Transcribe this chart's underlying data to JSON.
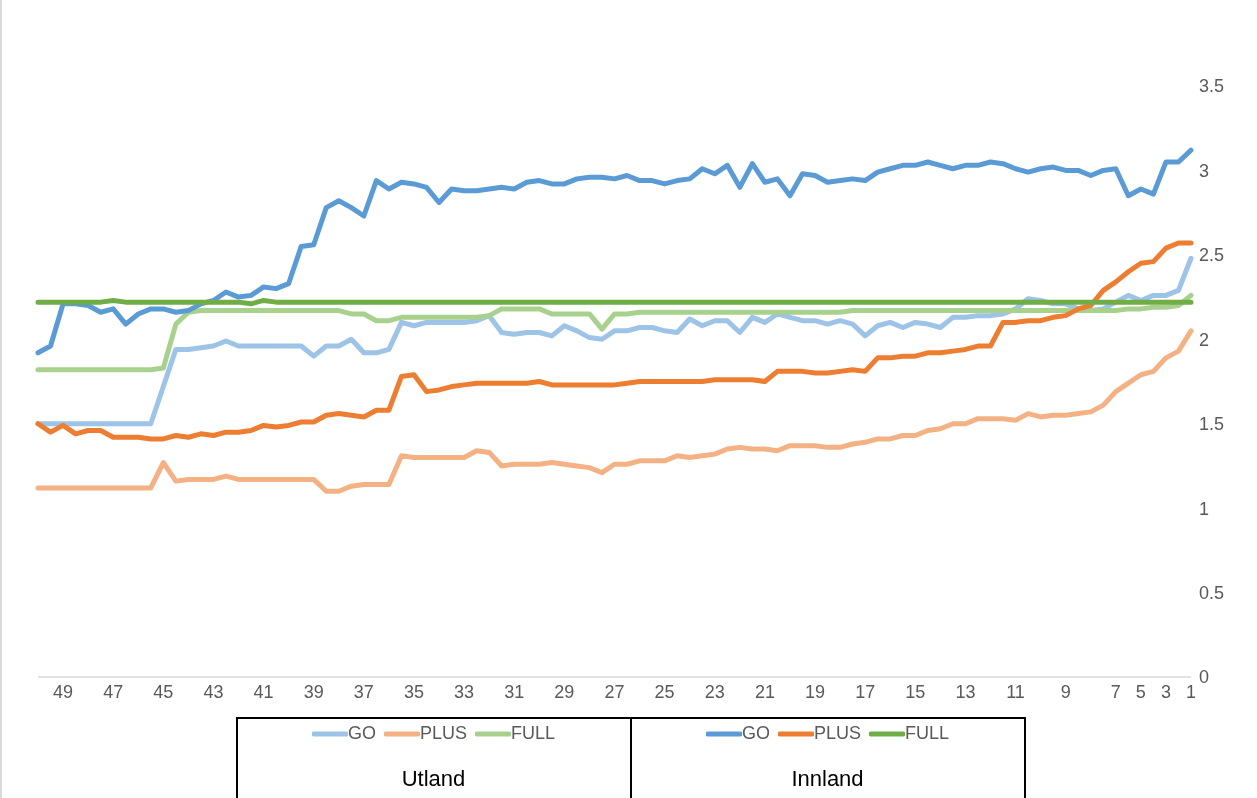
{
  "chart_data": {
    "type": "line",
    "categories": [
      null,
      null,
      "49",
      null,
      null,
      null,
      "47",
      null,
      null,
      null,
      "45",
      null,
      null,
      null,
      "43",
      null,
      null,
      null,
      "41",
      null,
      null,
      null,
      "39",
      null,
      null,
      null,
      "37",
      null,
      null,
      null,
      "35",
      null,
      null,
      null,
      "33",
      null,
      null,
      null,
      "31",
      null,
      null,
      null,
      "29",
      null,
      null,
      null,
      "27",
      null,
      null,
      null,
      "25",
      null,
      null,
      null,
      "23",
      null,
      null,
      null,
      "21",
      null,
      null,
      null,
      "19",
      null,
      null,
      null,
      "17",
      null,
      null,
      null,
      "15",
      null,
      null,
      null,
      "13",
      null,
      null,
      null,
      "11",
      null,
      null,
      null,
      "9",
      null,
      null,
      null,
      "7",
      null,
      "5",
      null,
      "3",
      null,
      "1"
    ],
    "series": [
      {
        "name": "GO",
        "color": "#9dc3e6",
        "values": [
          1.5,
          1.5,
          1.5,
          1.5,
          1.5,
          1.5,
          1.5,
          1.5,
          1.5,
          1.5,
          1.72,
          1.94,
          1.94,
          1.95,
          1.96,
          1.99,
          1.96,
          1.96,
          1.96,
          1.96,
          1.96,
          1.96,
          1.9,
          1.96,
          1.96,
          2.0,
          1.92,
          1.92,
          1.94,
          2.1,
          2.08,
          2.1,
          2.1,
          2.1,
          2.1,
          2.11,
          2.14,
          2.04,
          2.03,
          2.04,
          2.04,
          2.02,
          2.08,
          2.05,
          2.01,
          2.0,
          2.05,
          2.05,
          2.07,
          2.07,
          2.05,
          2.04,
          2.12,
          2.08,
          2.11,
          2.11,
          2.04,
          2.13,
          2.1,
          2.15,
          2.13,
          2.11,
          2.11,
          2.09,
          2.11,
          2.09,
          2.02,
          2.08,
          2.1,
          2.07,
          2.1,
          2.09,
          2.07,
          2.13,
          2.13,
          2.14,
          2.14,
          2.15,
          2.18,
          2.24,
          2.23,
          2.21,
          2.21,
          2.18,
          2.17,
          2.18,
          2.22,
          2.26,
          2.23,
          2.26,
          2.26,
          2.29,
          2.48
        ]
      },
      {
        "name": "PLUS",
        "color": "#f4b183",
        "values": [
          1.12,
          1.12,
          1.12,
          1.12,
          1.12,
          1.12,
          1.12,
          1.12,
          1.12,
          1.12,
          1.27,
          1.16,
          1.17,
          1.17,
          1.17,
          1.19,
          1.17,
          1.17,
          1.17,
          1.17,
          1.17,
          1.17,
          1.17,
          1.1,
          1.1,
          1.13,
          1.14,
          1.14,
          1.14,
          1.31,
          1.3,
          1.3,
          1.3,
          1.3,
          1.3,
          1.34,
          1.33,
          1.25,
          1.26,
          1.26,
          1.26,
          1.27,
          1.26,
          1.25,
          1.24,
          1.21,
          1.26,
          1.26,
          1.28,
          1.28,
          1.28,
          1.31,
          1.3,
          1.31,
          1.32,
          1.35,
          1.36,
          1.35,
          1.35,
          1.34,
          1.37,
          1.37,
          1.37,
          1.36,
          1.36,
          1.38,
          1.39,
          1.41,
          1.41,
          1.43,
          1.43,
          1.46,
          1.47,
          1.5,
          1.5,
          1.53,
          1.53,
          1.53,
          1.52,
          1.56,
          1.54,
          1.55,
          1.55,
          1.56,
          1.57,
          1.61,
          1.69,
          1.74,
          1.79,
          1.81,
          1.89,
          1.93,
          2.05
        ]
      },
      {
        "name": "FULL",
        "color": "#a9d18e",
        "values": [
          1.82,
          1.82,
          1.82,
          1.82,
          1.82,
          1.82,
          1.82,
          1.82,
          1.82,
          1.82,
          1.83,
          2.09,
          2.16,
          2.17,
          2.17,
          2.17,
          2.17,
          2.17,
          2.17,
          2.17,
          2.17,
          2.17,
          2.17,
          2.17,
          2.17,
          2.15,
          2.15,
          2.11,
          2.11,
          2.13,
          2.13,
          2.13,
          2.13,
          2.13,
          2.13,
          2.13,
          2.14,
          2.18,
          2.18,
          2.18,
          2.18,
          2.15,
          2.15,
          2.15,
          2.15,
          2.06,
          2.15,
          2.15,
          2.16,
          2.16,
          2.16,
          2.16,
          2.16,
          2.16,
          2.16,
          2.16,
          2.16,
          2.16,
          2.16,
          2.16,
          2.16,
          2.16,
          2.16,
          2.16,
          2.16,
          2.17,
          2.17,
          2.17,
          2.17,
          2.17,
          2.17,
          2.17,
          2.17,
          2.17,
          2.17,
          2.17,
          2.17,
          2.17,
          2.17,
          2.17,
          2.17,
          2.17,
          2.17,
          2.17,
          2.17,
          2.17,
          2.17,
          2.18,
          2.18,
          2.19,
          2.19,
          2.2,
          2.26
        ]
      },
      {
        "name": "GO",
        "color": "#5b9bd5",
        "values": [
          1.92,
          1.96,
          2.21,
          2.21,
          2.2,
          2.16,
          2.18,
          2.09,
          2.15,
          2.18,
          2.18,
          2.16,
          2.17,
          2.21,
          2.23,
          2.28,
          2.25,
          2.26,
          2.31,
          2.3,
          2.33,
          2.55,
          2.56,
          2.78,
          2.82,
          2.78,
          2.73,
          2.94,
          2.89,
          2.93,
          2.92,
          2.9,
          2.81,
          2.89,
          2.88,
          2.88,
          2.89,
          2.9,
          2.89,
          2.93,
          2.94,
          2.92,
          2.92,
          2.95,
          2.96,
          2.96,
          2.95,
          2.97,
          2.94,
          2.94,
          2.92,
          2.94,
          2.95,
          3.01,
          2.98,
          3.03,
          2.9,
          3.04,
          2.93,
          2.95,
          2.85,
          2.98,
          2.97,
          2.93,
          2.94,
          2.95,
          2.94,
          2.99,
          3.01,
          3.03,
          3.03,
          3.05,
          3.03,
          3.01,
          3.03,
          3.03,
          3.05,
          3.04,
          3.01,
          2.99,
          3.01,
          3.02,
          3.0,
          3.0,
          2.97,
          3.0,
          3.01,
          2.85,
          2.89,
          2.86,
          3.05,
          3.05,
          3.12
        ]
      },
      {
        "name": "PLUS",
        "color": "#ed7d31",
        "values": [
          1.5,
          1.45,
          1.49,
          1.44,
          1.46,
          1.46,
          1.42,
          1.42,
          1.42,
          1.41,
          1.41,
          1.43,
          1.42,
          1.44,
          1.43,
          1.45,
          1.45,
          1.46,
          1.49,
          1.48,
          1.49,
          1.51,
          1.51,
          1.55,
          1.56,
          1.55,
          1.54,
          1.58,
          1.58,
          1.78,
          1.79,
          1.69,
          1.7,
          1.72,
          1.73,
          1.74,
          1.74,
          1.74,
          1.74,
          1.74,
          1.75,
          1.73,
          1.73,
          1.73,
          1.73,
          1.73,
          1.73,
          1.74,
          1.75,
          1.75,
          1.75,
          1.75,
          1.75,
          1.75,
          1.76,
          1.76,
          1.76,
          1.76,
          1.75,
          1.81,
          1.81,
          1.81,
          1.8,
          1.8,
          1.81,
          1.82,
          1.81,
          1.89,
          1.89,
          1.9,
          1.9,
          1.92,
          1.92,
          1.93,
          1.94,
          1.96,
          1.96,
          2.1,
          2.1,
          2.11,
          2.11,
          2.13,
          2.14,
          2.18,
          2.2,
          2.29,
          2.34,
          2.4,
          2.45,
          2.46,
          2.54,
          2.57,
          2.57
        ]
      },
      {
        "name": "FULL",
        "color": "#70ad47",
        "values": [
          2.22,
          2.22,
          2.22,
          2.22,
          2.22,
          2.22,
          2.23,
          2.22,
          2.22,
          2.22,
          2.22,
          2.22,
          2.22,
          2.22,
          2.22,
          2.22,
          2.22,
          2.21,
          2.23,
          2.22,
          2.22,
          2.22,
          2.22,
          2.22,
          2.22,
          2.22,
          2.22,
          2.22,
          2.22,
          2.22,
          2.22,
          2.22,
          2.22,
          2.22,
          2.22,
          2.22,
          2.22,
          2.22,
          2.22,
          2.22,
          2.22,
          2.22,
          2.22,
          2.22,
          2.22,
          2.22,
          2.22,
          2.22,
          2.22,
          2.22,
          2.22,
          2.22,
          2.22,
          2.22,
          2.22,
          2.22,
          2.22,
          2.22,
          2.22,
          2.22,
          2.22,
          2.22,
          2.22,
          2.22,
          2.22,
          2.22,
          2.22,
          2.22,
          2.22,
          2.22,
          2.22,
          2.22,
          2.22,
          2.22,
          2.22,
          2.22,
          2.22,
          2.22,
          2.22,
          2.22,
          2.22,
          2.22,
          2.22,
          2.22,
          2.22,
          2.22,
          2.22,
          2.22,
          2.22,
          2.22,
          2.22,
          2.22,
          2.22
        ]
      }
    ],
    "ylim": [
      0,
      3.5
    ],
    "yticks": [
      0,
      0.5,
      1,
      1.5,
      2,
      2.5,
      3,
      3.5
    ],
    "legend": "bottom",
    "marker": "none",
    "line_style": "solid",
    "annotations": [
      "Utland",
      "Innland"
    ]
  }
}
